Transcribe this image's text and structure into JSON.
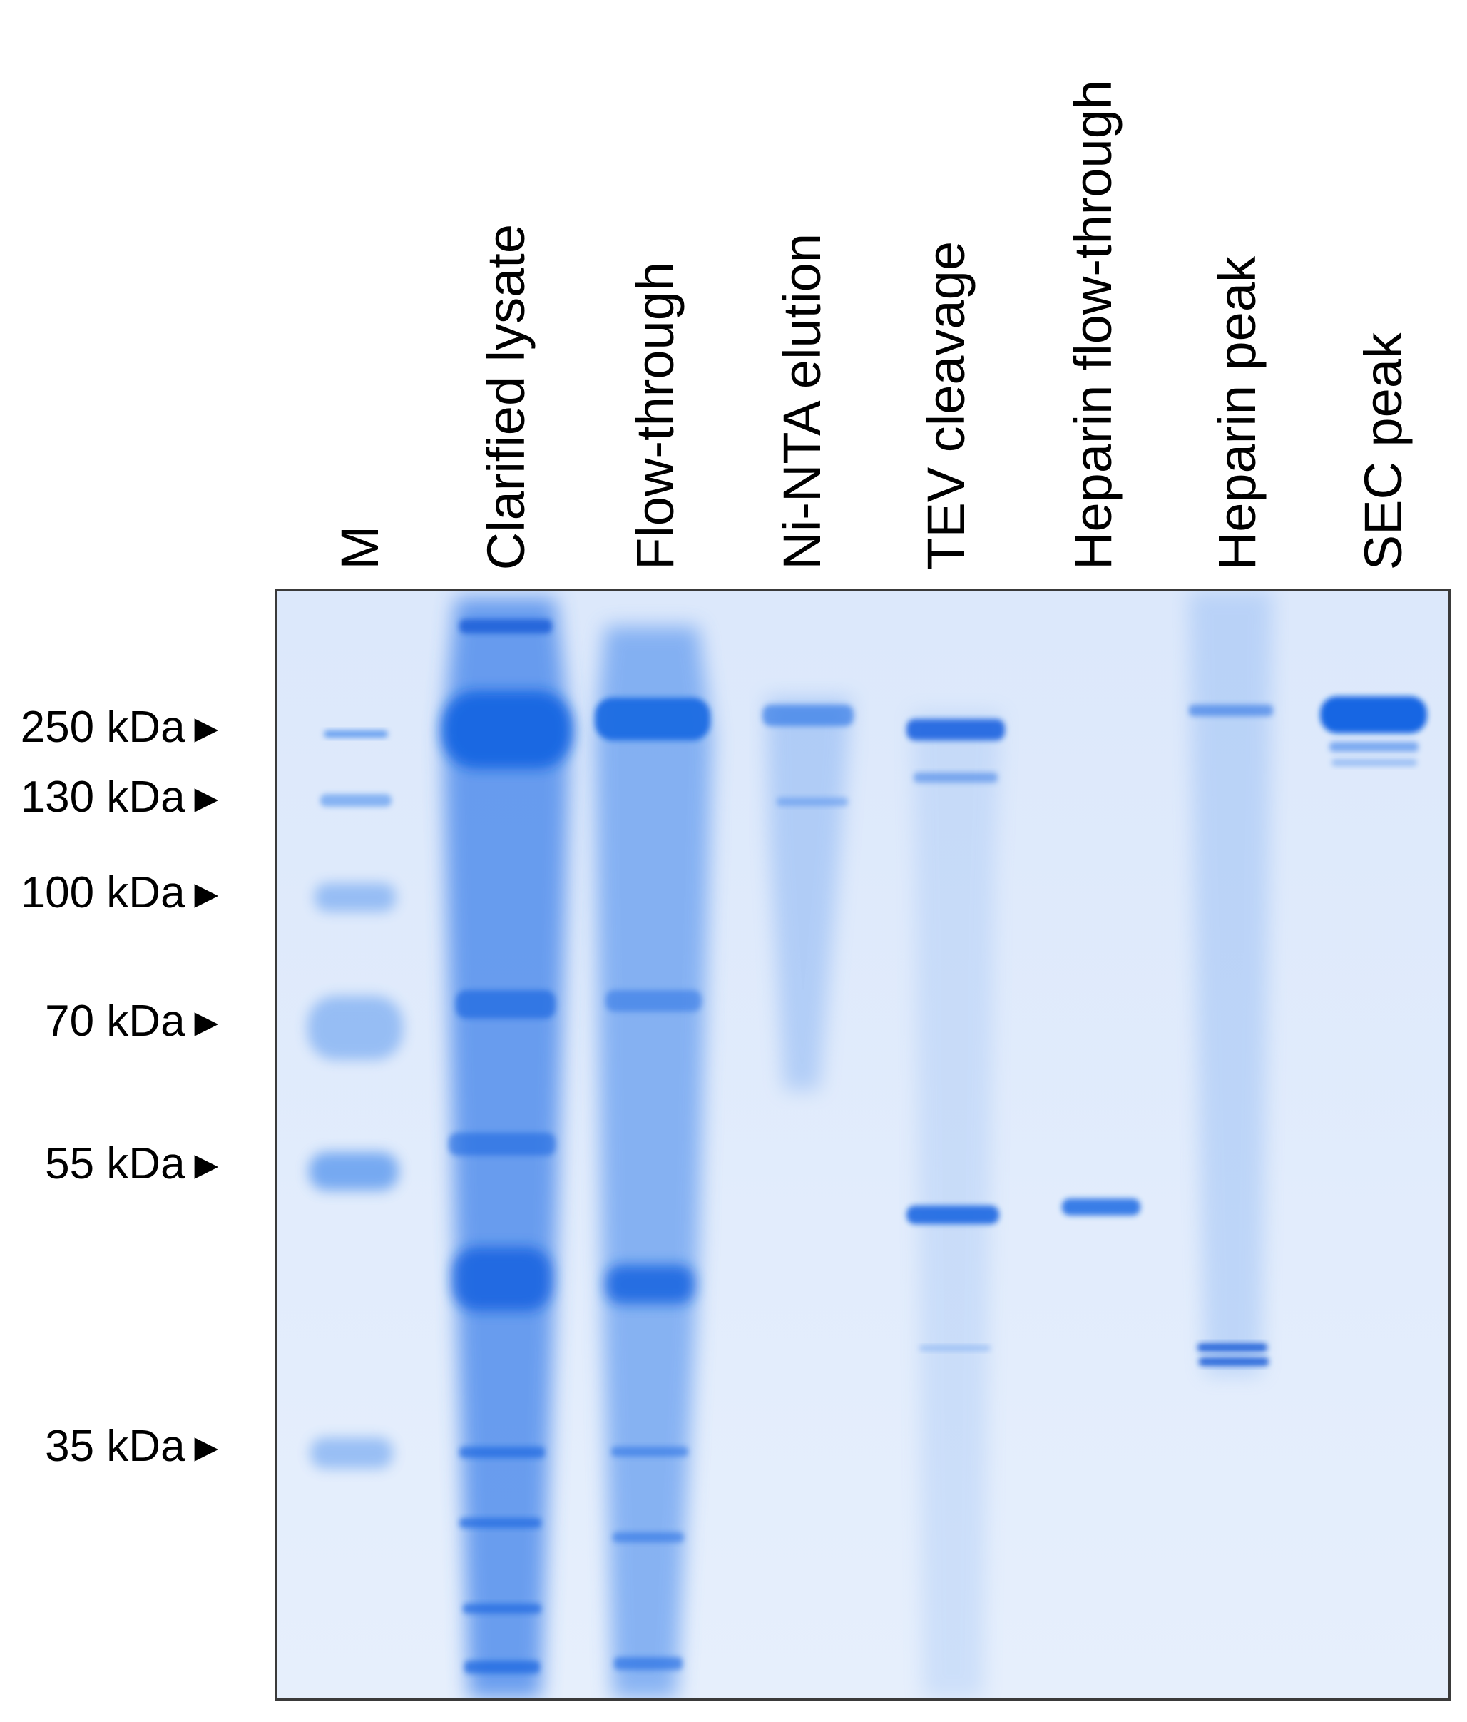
{
  "lanes": [
    {
      "label": "M"
    },
    {
      "label": "Clarified lysate"
    },
    {
      "label": "Flow-through"
    },
    {
      "label": "Ni-NTA elution"
    },
    {
      "label": "TEV cleavage"
    },
    {
      "label": "Heparin flow-through"
    },
    {
      "label": "Heparin peak"
    },
    {
      "label": "SEC peak"
    }
  ],
  "markers": [
    {
      "label": "250 kDa",
      "arrow": "►"
    },
    {
      "label": "130 kDa",
      "arrow": "►"
    },
    {
      "label": "100 kDa",
      "arrow": "►"
    },
    {
      "label": "70 kDa",
      "arrow": "►"
    },
    {
      "label": "55 kDa",
      "arrow": "►"
    },
    {
      "label": "35 kDa",
      "arrow": "►"
    }
  ],
  "colors": {
    "gel_background": "#dfeafb",
    "stain": "#1e6ce8",
    "stain_dark": "#1258d6",
    "border": "#3a3a3a"
  }
}
